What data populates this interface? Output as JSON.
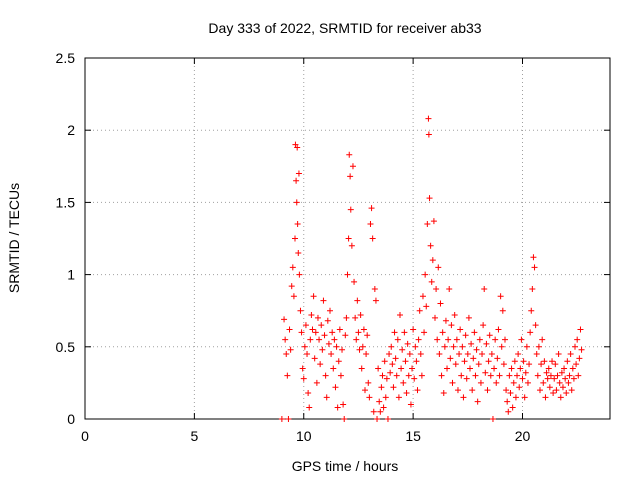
{
  "chart_data": {
    "type": "scatter",
    "title": "Day 333 of 2022, SRMTID for receiver ab33",
    "xlabel": "GPS time / hours",
    "ylabel": "SRMTID / TECUs",
    "xlim": [
      0,
      24
    ],
    "ylim": [
      0,
      2.5
    ],
    "xticks": [
      0,
      5,
      10,
      15,
      20
    ],
    "xtick_labels": [
      "0",
      "5",
      "10",
      "15",
      "20"
    ],
    "yticks": [
      0,
      0.5,
      1,
      1.5,
      2,
      2.5
    ],
    "ytick_labels": [
      "0",
      "0.5",
      "1",
      "1.5",
      "2",
      "2.5"
    ],
    "grid": true,
    "marker": "+",
    "series": [
      {
        "name": "SRMTID",
        "color": "#ff0000",
        "points": [
          [
            9.0,
            0.0
          ],
          [
            9.1,
            0.69
          ],
          [
            9.15,
            0.55
          ],
          [
            9.2,
            0.45
          ],
          [
            9.25,
            0.3
          ],
          [
            9.3,
            0.0
          ],
          [
            9.35,
            0.62
          ],
          [
            9.4,
            0.48
          ],
          [
            9.45,
            0.92
          ],
          [
            9.5,
            1.05
          ],
          [
            9.55,
            0.85
          ],
          [
            9.6,
            1.25
          ],
          [
            9.62,
            1.9
          ],
          [
            9.65,
            1.65
          ],
          [
            9.68,
            1.5
          ],
          [
            9.7,
            1.88
          ],
          [
            9.72,
            1.35
          ],
          [
            9.75,
            1.15
          ],
          [
            9.78,
            1.7
          ],
          [
            9.8,
            1.0
          ],
          [
            9.85,
            0.75
          ],
          [
            9.9,
            0.6
          ],
          [
            9.95,
            0.35
          ],
          [
            10.0,
            0.28
          ],
          [
            10.05,
            0.5
          ],
          [
            10.1,
            0.65
          ],
          [
            10.15,
            0.45
          ],
          [
            10.2,
            0.18
          ],
          [
            10.25,
            0.08
          ],
          [
            10.3,
            0.55
          ],
          [
            10.35,
            0.72
          ],
          [
            10.4,
            0.62
          ],
          [
            10.45,
            0.85
          ],
          [
            10.5,
            0.42
          ],
          [
            10.55,
            0.6
          ],
          [
            10.6,
            0.25
          ],
          [
            10.65,
            0.7
          ],
          [
            10.7,
            0.55
          ],
          [
            10.75,
            0.38
          ],
          [
            10.8,
            0.65
          ],
          [
            10.85,
            0.48
          ],
          [
            10.9,
            0.82
          ],
          [
            10.95,
            0.58
          ],
          [
            11.0,
            0.3
          ],
          [
            11.05,
            0.15
          ],
          [
            11.1,
            0.68
          ],
          [
            11.15,
            0.52
          ],
          [
            11.2,
            0.75
          ],
          [
            11.25,
            0.45
          ],
          [
            11.3,
            0.6
          ],
          [
            11.35,
            0.35
          ],
          [
            11.4,
            0.55
          ],
          [
            11.45,
            0.22
          ],
          [
            11.5,
            0.5
          ],
          [
            11.55,
            0.08
          ],
          [
            11.6,
            0.4
          ],
          [
            11.65,
            0.62
          ],
          [
            11.7,
            0.3
          ],
          [
            11.75,
            0.48
          ],
          [
            11.8,
            0.1
          ],
          [
            11.85,
            0.0
          ],
          [
            11.9,
            0.58
          ],
          [
            11.95,
            0.7
          ],
          [
            12.0,
            1.0
          ],
          [
            12.05,
            1.25
          ],
          [
            12.08,
            1.83
          ],
          [
            12.12,
            1.68
          ],
          [
            12.15,
            1.45
          ],
          [
            12.2,
            1.2
          ],
          [
            12.25,
            1.75
          ],
          [
            12.3,
            0.95
          ],
          [
            12.35,
            0.7
          ],
          [
            12.4,
            0.55
          ],
          [
            12.45,
            0.82
          ],
          [
            12.5,
            0.6
          ],
          [
            12.55,
            0.48
          ],
          [
            12.6,
            0.72
          ],
          [
            12.65,
            0.35
          ],
          [
            12.7,
            0.5
          ],
          [
            12.75,
            0.62
          ],
          [
            12.8,
            0.2
          ],
          [
            12.85,
            0.45
          ],
          [
            12.9,
            0.58
          ],
          [
            12.95,
            0.25
          ],
          [
            13.0,
            0.15
          ],
          [
            13.05,
            1.35
          ],
          [
            13.1,
            1.46
          ],
          [
            13.15,
            1.25
          ],
          [
            13.2,
            0.05
          ],
          [
            13.25,
            0.9
          ],
          [
            13.3,
            0.82
          ],
          [
            13.35,
            0.0
          ],
          [
            13.4,
            0.35
          ],
          [
            13.45,
            0.12
          ],
          [
            13.5,
            0.05
          ],
          [
            13.55,
            0.22
          ],
          [
            13.6,
            0.3
          ],
          [
            13.65,
            0.08
          ],
          [
            13.7,
            0.4
          ],
          [
            13.75,
            0.15
          ],
          [
            13.8,
            0.28
          ],
          [
            13.85,
            0.0
          ],
          [
            13.9,
            0.45
          ],
          [
            13.95,
            0.32
          ],
          [
            14.0,
            0.5
          ],
          [
            14.05,
            0.38
          ],
          [
            14.1,
            0.22
          ],
          [
            14.15,
            0.6
          ],
          [
            14.2,
            0.42
          ],
          [
            14.25,
            0.3
          ],
          [
            14.3,
            0.55
          ],
          [
            14.35,
            0.15
          ],
          [
            14.4,
            0.72
          ],
          [
            14.45,
            0.35
          ],
          [
            14.5,
            0.48
          ],
          [
            14.55,
            0.25
          ],
          [
            14.6,
            0.6
          ],
          [
            14.65,
            0.4
          ],
          [
            14.7,
            0.18
          ],
          [
            14.75,
            0.52
          ],
          [
            14.8,
            0.3
          ],
          [
            14.85,
            0.45
          ],
          [
            14.9,
            0.1
          ],
          [
            14.95,
            0.35
          ],
          [
            15.0,
            0.62
          ],
          [
            15.05,
            0.28
          ],
          [
            15.1,
            0.5
          ],
          [
            15.15,
            0.4
          ],
          [
            15.2,
            0.2
          ],
          [
            15.25,
            0.55
          ],
          [
            15.3,
            0.75
          ],
          [
            15.35,
            0.45
          ],
          [
            15.4,
            0.3
          ],
          [
            15.45,
            0.85
          ],
          [
            15.5,
            0.6
          ],
          [
            15.55,
            1.0
          ],
          [
            15.6,
            0.78
          ],
          [
            15.65,
            1.35
          ],
          [
            15.7,
            2.08
          ],
          [
            15.72,
            1.97
          ],
          [
            15.75,
            1.53
          ],
          [
            15.8,
            1.2
          ],
          [
            15.85,
            0.95
          ],
          [
            15.9,
            1.1
          ],
          [
            15.95,
            1.37
          ],
          [
            16.0,
            0.7
          ],
          [
            16.05,
            0.9
          ],
          [
            16.1,
            0.55
          ],
          [
            16.15,
            1.05
          ],
          [
            16.2,
            0.45
          ],
          [
            16.25,
            0.8
          ],
          [
            16.3,
            0.3
          ],
          [
            16.35,
            0.6
          ],
          [
            16.4,
            0.18
          ],
          [
            16.45,
            0.5
          ],
          [
            16.5,
            0.68
          ],
          [
            16.55,
            0.35
          ],
          [
            16.6,
            0.55
          ],
          [
            16.65,
            0.9
          ],
          [
            16.7,
            0.42
          ],
          [
            16.75,
            0.65
          ],
          [
            16.8,
            0.25
          ],
          [
            16.85,
            0.5
          ],
          [
            16.9,
            0.72
          ],
          [
            16.95,
            0.38
          ],
          [
            17.0,
            0.55
          ],
          [
            17.05,
            0.2
          ],
          [
            17.1,
            0.45
          ],
          [
            17.15,
            0.62
          ],
          [
            17.2,
            0.3
          ],
          [
            17.25,
            0.5
          ],
          [
            17.3,
            0.15
          ],
          [
            17.35,
            0.4
          ],
          [
            17.4,
            0.58
          ],
          [
            17.45,
            0.28
          ],
          [
            17.5,
            0.45
          ],
          [
            17.55,
            0.7
          ],
          [
            17.6,
            0.35
          ],
          [
            17.65,
            0.52
          ],
          [
            17.7,
            0.2
          ],
          [
            17.75,
            0.42
          ],
          [
            17.8,
            0.6
          ],
          [
            17.85,
            0.3
          ],
          [
            17.9,
            0.48
          ],
          [
            17.95,
            0.12
          ],
          [
            18.0,
            0.38
          ],
          [
            18.05,
            0.55
          ],
          [
            18.1,
            0.25
          ],
          [
            18.15,
            0.45
          ],
          [
            18.2,
            0.65
          ],
          [
            18.25,
            0.9
          ],
          [
            18.3,
            0.32
          ],
          [
            18.35,
            0.52
          ],
          [
            18.4,
            0.2
          ],
          [
            18.45,
            0.4
          ],
          [
            18.5,
            0.58
          ],
          [
            18.55,
            0.3
          ],
          [
            18.6,
            0.45
          ],
          [
            18.65,
            0.0
          ],
          [
            18.7,
            0.35
          ],
          [
            18.75,
            0.55
          ],
          [
            18.8,
            0.25
          ],
          [
            18.85,
            0.42
          ],
          [
            18.9,
            0.62
          ],
          [
            18.95,
            0.3
          ],
          [
            19.0,
            0.85
          ],
          [
            19.05,
            0.5
          ],
          [
            19.1,
            0.75
          ],
          [
            19.15,
            0.38
          ],
          [
            19.2,
            0.55
          ],
          [
            19.25,
            0.2
          ],
          [
            19.3,
            0.12
          ],
          [
            19.35,
            0.05
          ],
          [
            19.4,
            0.3
          ],
          [
            19.45,
            0.18
          ],
          [
            19.5,
            0.35
          ],
          [
            19.55,
            0.08
          ],
          [
            19.6,
            0.25
          ],
          [
            19.65,
            0.4
          ],
          [
            19.7,
            0.15
          ],
          [
            19.75,
            0.3
          ],
          [
            19.8,
            0.45
          ],
          [
            19.85,
            0.22
          ],
          [
            19.9,
            0.35
          ],
          [
            19.95,
            0.55
          ],
          [
            20.0,
            0.28
          ],
          [
            20.05,
            0.4
          ],
          [
            20.1,
            0.15
          ],
          [
            20.15,
            0.32
          ],
          [
            20.2,
            0.5
          ],
          [
            20.25,
            0.25
          ],
          [
            20.3,
            0.38
          ],
          [
            20.35,
            0.6
          ],
          [
            20.4,
            0.75
          ],
          [
            20.45,
            0.9
          ],
          [
            20.5,
            1.12
          ],
          [
            20.55,
            1.05
          ],
          [
            20.6,
            0.65
          ],
          [
            20.65,
            0.45
          ],
          [
            20.7,
            0.3
          ],
          [
            20.75,
            0.5
          ],
          [
            20.8,
            0.2
          ],
          [
            20.85,
            0.38
          ],
          [
            20.9,
            0.55
          ],
          [
            20.95,
            0.25
          ],
          [
            21.0,
            0.4
          ],
          [
            21.05,
            0.15
          ],
          [
            21.1,
            0.32
          ],
          [
            21.15,
            0.28
          ],
          [
            21.2,
            0.35
          ],
          [
            21.25,
            0.22
          ],
          [
            21.3,
            0.3
          ],
          [
            21.35,
            0.4
          ],
          [
            21.4,
            0.18
          ],
          [
            21.45,
            0.28
          ],
          [
            21.5,
            0.38
          ],
          [
            21.55,
            0.2
          ],
          [
            21.6,
            0.3
          ],
          [
            21.65,
            0.45
          ],
          [
            21.7,
            0.25
          ],
          [
            21.75,
            0.15
          ],
          [
            21.8,
            0.32
          ],
          [
            21.85,
            0.22
          ],
          [
            21.9,
            0.35
          ],
          [
            21.95,
            0.28
          ],
          [
            22.0,
            0.18
          ],
          [
            22.05,
            0.4
          ],
          [
            22.1,
            0.25
          ],
          [
            22.15,
            0.3
          ],
          [
            22.2,
            0.45
          ],
          [
            22.25,
            0.2
          ],
          [
            22.3,
            0.35
          ],
          [
            22.35,
            0.28
          ],
          [
            22.4,
            0.5
          ],
          [
            22.45,
            0.38
          ],
          [
            22.5,
            0.55
          ],
          [
            22.55,
            0.3
          ],
          [
            22.6,
            0.42
          ],
          [
            22.65,
            0.62
          ],
          [
            22.7,
            0.48
          ]
        ]
      }
    ]
  }
}
